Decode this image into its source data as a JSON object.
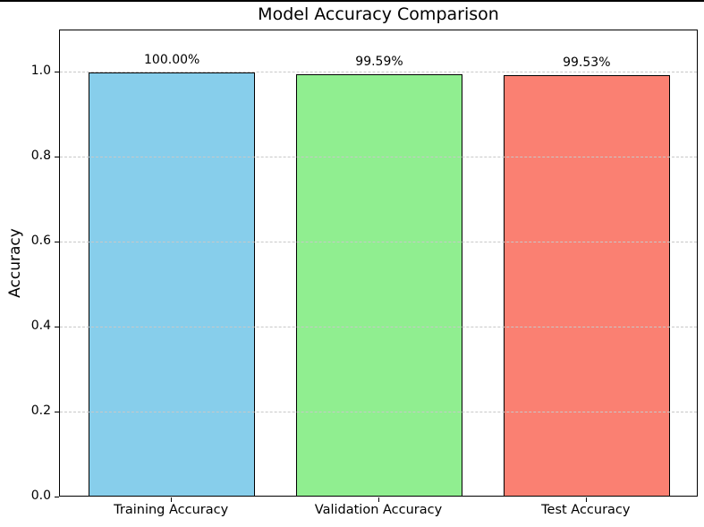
{
  "window": {
    "top_border_color": "#000000",
    "background": "#ffffff"
  },
  "chart_data": {
    "type": "bar",
    "title": "Model Accuracy Comparison",
    "xlabel": "",
    "ylabel": "Accuracy",
    "categories": [
      "Training Accuracy",
      "Validation Accuracy",
      "Test Accuracy"
    ],
    "values": [
      1.0,
      0.9959,
      0.9953
    ],
    "bar_labels": [
      "100.00%",
      "99.59%",
      "99.53%"
    ],
    "bar_colors": [
      "#87CEEB",
      "#90EE90",
      "#FA8072"
    ],
    "bar_edge_color": "#000000",
    "ylim": [
      0,
      1.1
    ],
    "ytick_labels": [
      "0.0",
      "0.2",
      "0.4",
      "0.6",
      "0.8",
      "1.0"
    ],
    "ytick_values": [
      0,
      0.2,
      0.4,
      0.6,
      0.8,
      1.0
    ],
    "grid": {
      "on": true,
      "axis": "y",
      "linestyle": "dashed",
      "color": "#c8c8c8",
      "above_bars": true
    },
    "legend": "none",
    "text_color": "#000000",
    "plot_background": "#ffffff",
    "spine_color": "#000000"
  }
}
